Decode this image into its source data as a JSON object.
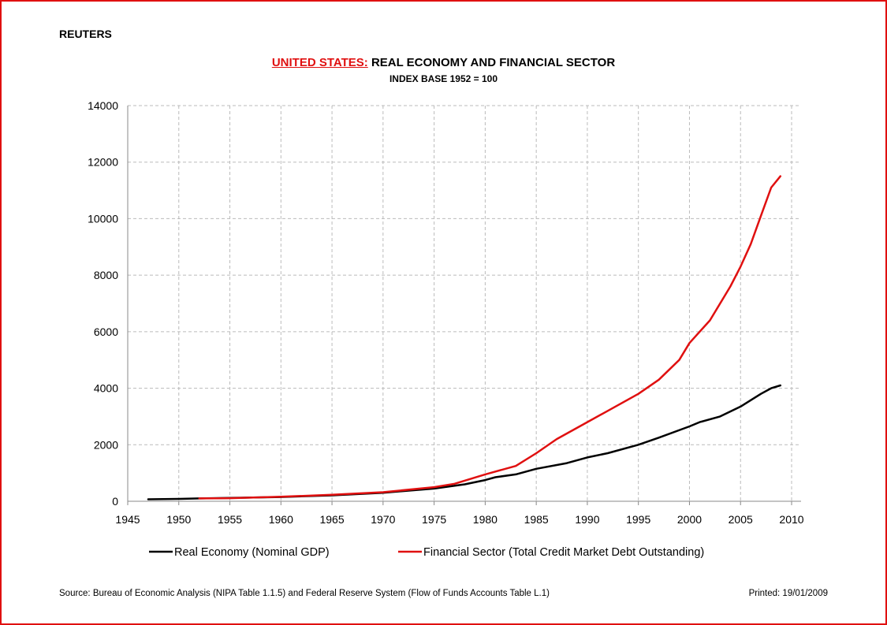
{
  "header": {
    "brand": "REUTERS",
    "title_part1": "UNITED STATES:",
    "title_part2": "REAL ECONOMY AND FINANCIAL SECTOR",
    "subtitle": "INDEX BASE 1952 = 100"
  },
  "footer": {
    "source": "Source:  Bureau of Economic Analysis (NIPA Table 1.1.5) and Federal Reserve System (Flow of Funds Accounts Table L.1)",
    "printed": "Printed:  19/01/2009"
  },
  "colors": {
    "frame": "#e01010",
    "real_economy": "#000000",
    "financial_sector": "#e01010",
    "grid": "#bbbbbb"
  },
  "chart_data": {
    "type": "line",
    "title": "REAL ECONOMY AND FINANCIAL SECTOR",
    "subtitle": "INDEX BASE 1952 = 100",
    "xlim": [
      1945,
      2010
    ],
    "ylim": [
      0,
      14000
    ],
    "x_ticks": [
      1945,
      1950,
      1955,
      1960,
      1965,
      1970,
      1975,
      1980,
      1985,
      1990,
      1995,
      2000,
      2005,
      2010
    ],
    "y_ticks": [
      0,
      2000,
      4000,
      6000,
      8000,
      10000,
      12000,
      14000
    ],
    "grid": true,
    "legend_position": "bottom",
    "series": [
      {
        "name": "Real Economy (Nominal GDP)",
        "color": "#000000",
        "points": [
          [
            1947,
            70
          ],
          [
            1950,
            85
          ],
          [
            1952,
            100
          ],
          [
            1955,
            120
          ],
          [
            1960,
            150
          ],
          [
            1965,
            210
          ],
          [
            1970,
            300
          ],
          [
            1975,
            450
          ],
          [
            1978,
            600
          ],
          [
            1980,
            750
          ],
          [
            1981,
            850
          ],
          [
            1983,
            950
          ],
          [
            1985,
            1150
          ],
          [
            1988,
            1350
          ],
          [
            1990,
            1550
          ],
          [
            1992,
            1700
          ],
          [
            1995,
            2000
          ],
          [
            1997,
            2250
          ],
          [
            2000,
            2650
          ],
          [
            2001,
            2800
          ],
          [
            2003,
            3000
          ],
          [
            2005,
            3350
          ],
          [
            2007,
            3800
          ],
          [
            2008,
            4000
          ],
          [
            2008.9,
            4100
          ]
        ]
      },
      {
        "name": "Financial Sector (Total Credit Market Debt Outstanding)",
        "color": "#e01010",
        "points": [
          [
            1952,
            100
          ],
          [
            1955,
            110
          ],
          [
            1960,
            160
          ],
          [
            1965,
            230
          ],
          [
            1970,
            320
          ],
          [
            1975,
            500
          ],
          [
            1977,
            620
          ],
          [
            1980,
            950
          ],
          [
            1983,
            1250
          ],
          [
            1985,
            1700
          ],
          [
            1987,
            2200
          ],
          [
            1990,
            2800
          ],
          [
            1992,
            3200
          ],
          [
            1995,
            3800
          ],
          [
            1997,
            4300
          ],
          [
            1999,
            5000
          ],
          [
            2000,
            5600
          ],
          [
            2002,
            6400
          ],
          [
            2004,
            7600
          ],
          [
            2005,
            8300
          ],
          [
            2006,
            9100
          ],
          [
            2007,
            10100
          ],
          [
            2008,
            11100
          ],
          [
            2008.9,
            11500
          ]
        ]
      }
    ]
  }
}
